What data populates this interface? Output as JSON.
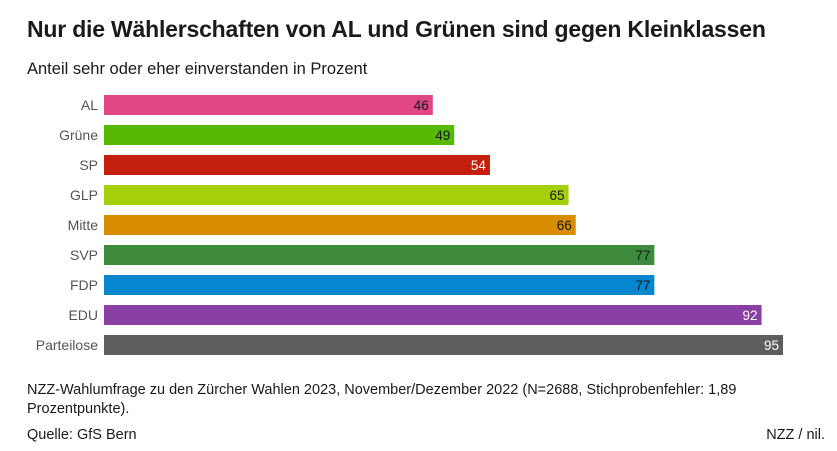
{
  "chart_data": {
    "type": "bar",
    "orientation": "horizontal",
    "title": "Nur die Wählerschaften von AL und Grünen sind gegen Kleinklassen",
    "subtitle": "Anteil sehr oder eher einverstanden in Prozent",
    "categories": [
      "AL",
      "Grüne",
      "SP",
      "GLP",
      "Mitte",
      "SVP",
      "FDP",
      "EDU",
      "Parteilose"
    ],
    "values": [
      46,
      49,
      54,
      65,
      66,
      77,
      77,
      92,
      95
    ],
    "colors": [
      "#e04584",
      "#56b800",
      "#c4200d",
      "#a4cf0a",
      "#d88c00",
      "#3e8b3e",
      "#0686cf",
      "#8a3fa4",
      "#5e5e5e"
    ],
    "label_colors": [
      "#1a1a1a",
      "#1a1a1a",
      "#ffffff",
      "#1a1a1a",
      "#1a1a1a",
      "#1a1a1a",
      "#1a1a1a",
      "#ffffff",
      "#ffffff"
    ],
    "xlim": [
      0,
      95
    ],
    "grid": false,
    "xlabel": "",
    "ylabel": ""
  },
  "footer": {
    "note": "NZZ-Wahlumfrage zu den Zürcher Wahlen 2023, November/Dezember 2022 (N=2688, Stichprobenfehler: 1,89 Prozentpunkte).",
    "source": "Quelle: GfS Bern",
    "credit": "NZZ / nil."
  }
}
